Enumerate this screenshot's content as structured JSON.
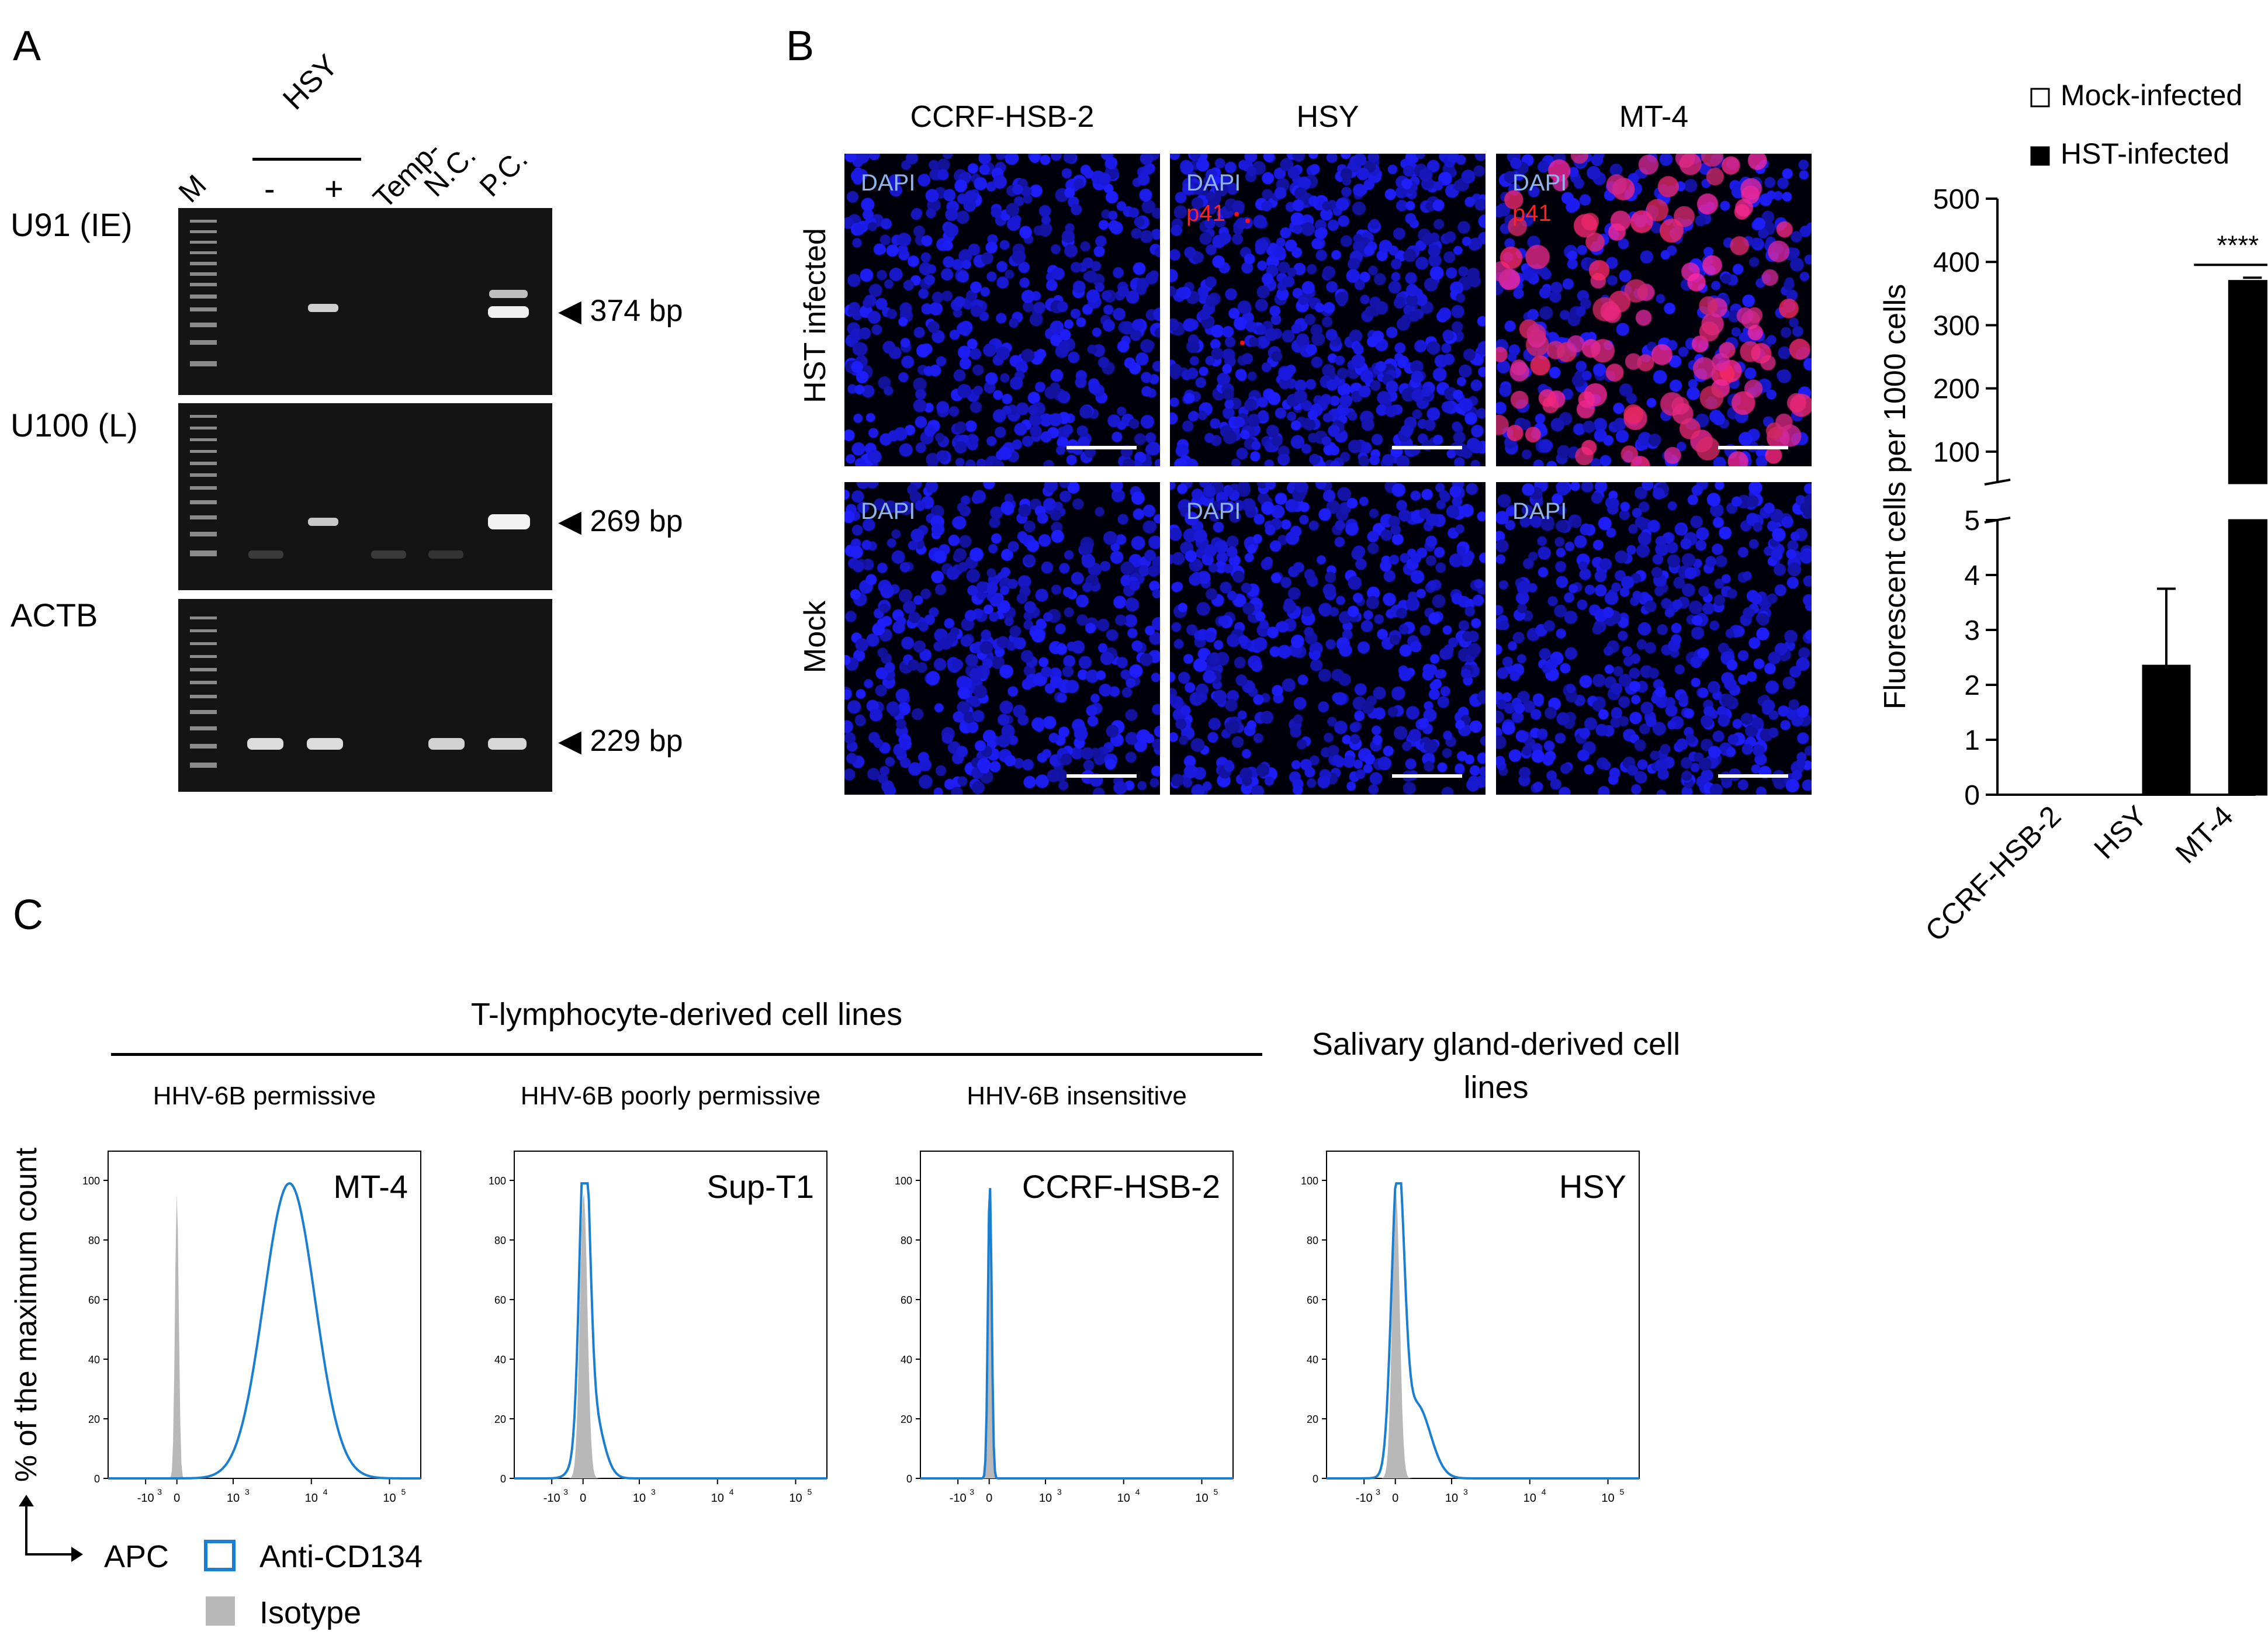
{
  "panels": {
    "a": "A",
    "b": "B",
    "c": "C"
  },
  "panel_a": {
    "lane_header_group": "HSY",
    "lanes": [
      "M",
      "-",
      "+",
      "Temp-",
      "N.C.",
      "P.C."
    ],
    "rows": [
      {
        "label": "U91 (IE)",
        "marker": "◀ 374 bp"
      },
      {
        "label": "U100 (L)",
        "marker": "◀ 269 bp"
      },
      {
        "label": "ACTB",
        "marker": "◀ 229 bp"
      }
    ]
  },
  "panel_b": {
    "columns": [
      "CCRF-HSB-2",
      "HSY",
      "MT-4"
    ],
    "rows": [
      "HST infected",
      "Mock"
    ],
    "stain_dapi": "DAPI",
    "stain_p41": "p41",
    "colors": {
      "dapi": "#1a1ae6",
      "p41": "#ff2020",
      "dapi_label": "#8fb4e8"
    }
  },
  "chart_data": [
    {
      "type": "bar",
      "categories": [
        "CCRF-HSB-2",
        "HSY",
        "MT-4"
      ],
      "series": [
        {
          "name": "Mock-infected",
          "values": [
            0,
            0,
            0
          ]
        },
        {
          "name": "HST-infected",
          "values": [
            0,
            2.35,
            370
          ],
          "error": [
            0,
            1.4,
            5
          ]
        }
      ],
      "ylabel": "Fluorescent cells per 1000 cells",
      "axis_break": true,
      "lower_ylim": [
        0,
        5
      ],
      "lower_ticks": [
        "0",
        "1",
        "2",
        "3",
        "4",
        "5"
      ],
      "upper_ylim": [
        50,
        500
      ],
      "upper_ticks": [
        "100",
        "200",
        "300",
        "400",
        "500"
      ],
      "significance": "****",
      "legend_position": "top-right"
    },
    {
      "type": "area",
      "group_title": "T-lymphocyte-derived cell lines",
      "group_title_2": "Salivary gland-derived cell lines",
      "ylabel": "% of the maximum count",
      "xlabel": "APC",
      "y_ticks": [
        "0",
        "20",
        "40",
        "60",
        "80",
        "100"
      ],
      "x_ticks": [
        "-10",
        "0",
        "10",
        "10",
        "10"
      ],
      "x_tick_exponents": [
        "3",
        "",
        "3",
        "4",
        "5"
      ],
      "legend": [
        "Anti-CD134",
        "Isotype"
      ],
      "colors": {
        "anti": "#1a7fd1",
        "isotype": "#b8b8b8"
      },
      "subplots": [
        {
          "subtitle": "HHV-6B permissive",
          "cell_line": "MT-4"
        },
        {
          "subtitle": "HHV-6B poorly permissive",
          "cell_line": "Sup-T1"
        },
        {
          "subtitle": "HHV-6B insensitive",
          "cell_line": "CCRF-HSB-2"
        },
        {
          "subtitle": "",
          "cell_line": "HSY"
        }
      ]
    }
  ]
}
